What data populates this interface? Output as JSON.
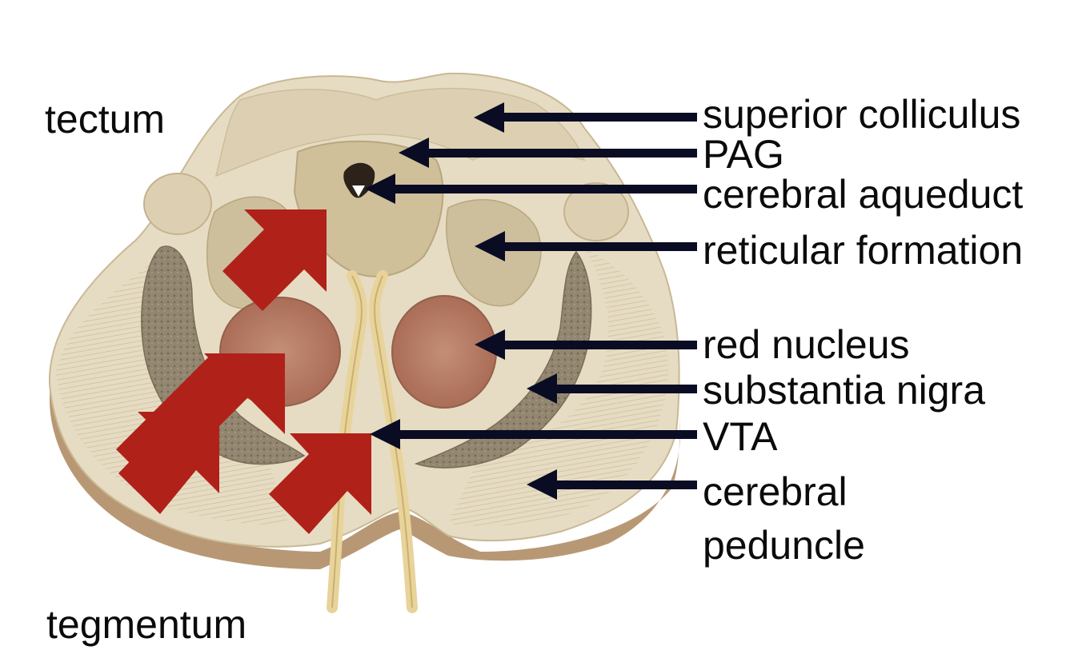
{
  "regions": {
    "tectum": "tectum",
    "tegmentum": "tegmentum"
  },
  "structures": [
    {
      "id": "superior-colliculus",
      "label": "superior colliculus"
    },
    {
      "id": "pag",
      "label": "PAG"
    },
    {
      "id": "cerebral-aqueduct",
      "label": "cerebral aqueduct"
    },
    {
      "id": "reticular-formation",
      "label": "reticular formation"
    },
    {
      "id": "red-nucleus",
      "label": "red nucleus"
    },
    {
      "id": "substantia-nigra",
      "label": "substantia nigra"
    },
    {
      "id": "vta",
      "label": "VTA"
    },
    {
      "id": "cerebral-peduncle",
      "label": "cerebral",
      "label_line2": "peduncle"
    }
  ],
  "colors": {
    "pointer_arrow": "#0a0c24",
    "highlight_arrow": "#b0211a",
    "tissue_light": "#e6dcc3",
    "tissue_mid": "#d9ccae",
    "red_nucleus": "#b98068",
    "substantia_nigra": "#8d8068",
    "peduncle_rim": "#b89874"
  }
}
